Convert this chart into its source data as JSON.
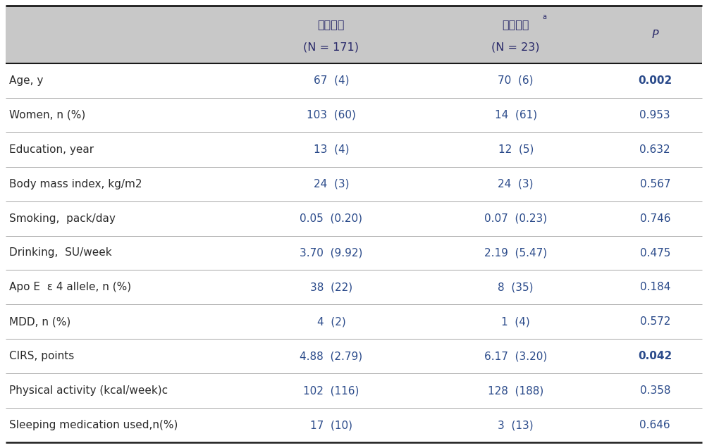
{
  "header_bg": "#c8c8c8",
  "border_color_top": "#1a1a1a",
  "border_color_bottom": "#1a1a1a",
  "border_color_mid": "#888888",
  "text_color_label": "#2a2a2a",
  "text_color_value": "#2a4a8a",
  "text_color_p": "#2a4a8a",
  "header_text_color": "#2a2a6a",
  "col2_header_line1": "인지정상",
  "col2_header_line2": "(N = 171)",
  "col3_header_line1": "인지장애",
  "col3_header_superscript": "a",
  "col3_header_line2": "(N = 23)",
  "col4_header": "P",
  "rows": [
    {
      "label": "Age, y",
      "col2": "67  (4)",
      "col3": "70  (6)",
      "p": "0.002",
      "p_bold": true
    },
    {
      "label": "Women, n (%)",
      "col2": "103  (60)",
      "col3": "14  (61)",
      "p": "0.953",
      "p_bold": false
    },
    {
      "label": "Education, year",
      "col2": "13  (4)",
      "col3": "12  (5)",
      "p": "0.632",
      "p_bold": false
    },
    {
      "label": "Body mass index, kg/m2",
      "col2": "24  (3)",
      "col3": "24  (3)",
      "p": "0.567",
      "p_bold": false
    },
    {
      "label": "Smoking,  pack/day",
      "col2": "0.05  (0.20)",
      "col3": "0.07  (0.23)",
      "p": "0.746",
      "p_bold": false
    },
    {
      "label": "Drinking,  SU/week",
      "col2": "3.70  (9.92)",
      "col3": "2.19  (5.47)",
      "p": "0.475",
      "p_bold": false
    },
    {
      "label": "Apo E  ε 4 allele, n (%)",
      "col2": "38  (22)",
      "col3": "8  (35)",
      "p": "0.184",
      "p_bold": false
    },
    {
      "label": "MDD, n (%)",
      "col2": "4  (2)",
      "col3": "1  (4)",
      "p": "0.572",
      "p_bold": false
    },
    {
      "label": "CIRS, points",
      "col2": "4.88  (2.79)",
      "col3": "6.17  (3.20)",
      "p": "0.042",
      "p_bold": true
    },
    {
      "label": "Physical activity (kcal/week)c",
      "col2": "102  (116)",
      "col3": "128  (188)",
      "p": "0.358",
      "p_bold": false
    },
    {
      "label": "Sleeping medication used,n(%)",
      "col2": "17  (10)",
      "col3": "3  (13)",
      "p": "0.646",
      "p_bold": false
    }
  ],
  "font_size_header_korean": 11.5,
  "font_size_header_latin": 11.5,
  "font_size_row": 11.0,
  "fig_width": 10.04,
  "fig_height": 6.36
}
